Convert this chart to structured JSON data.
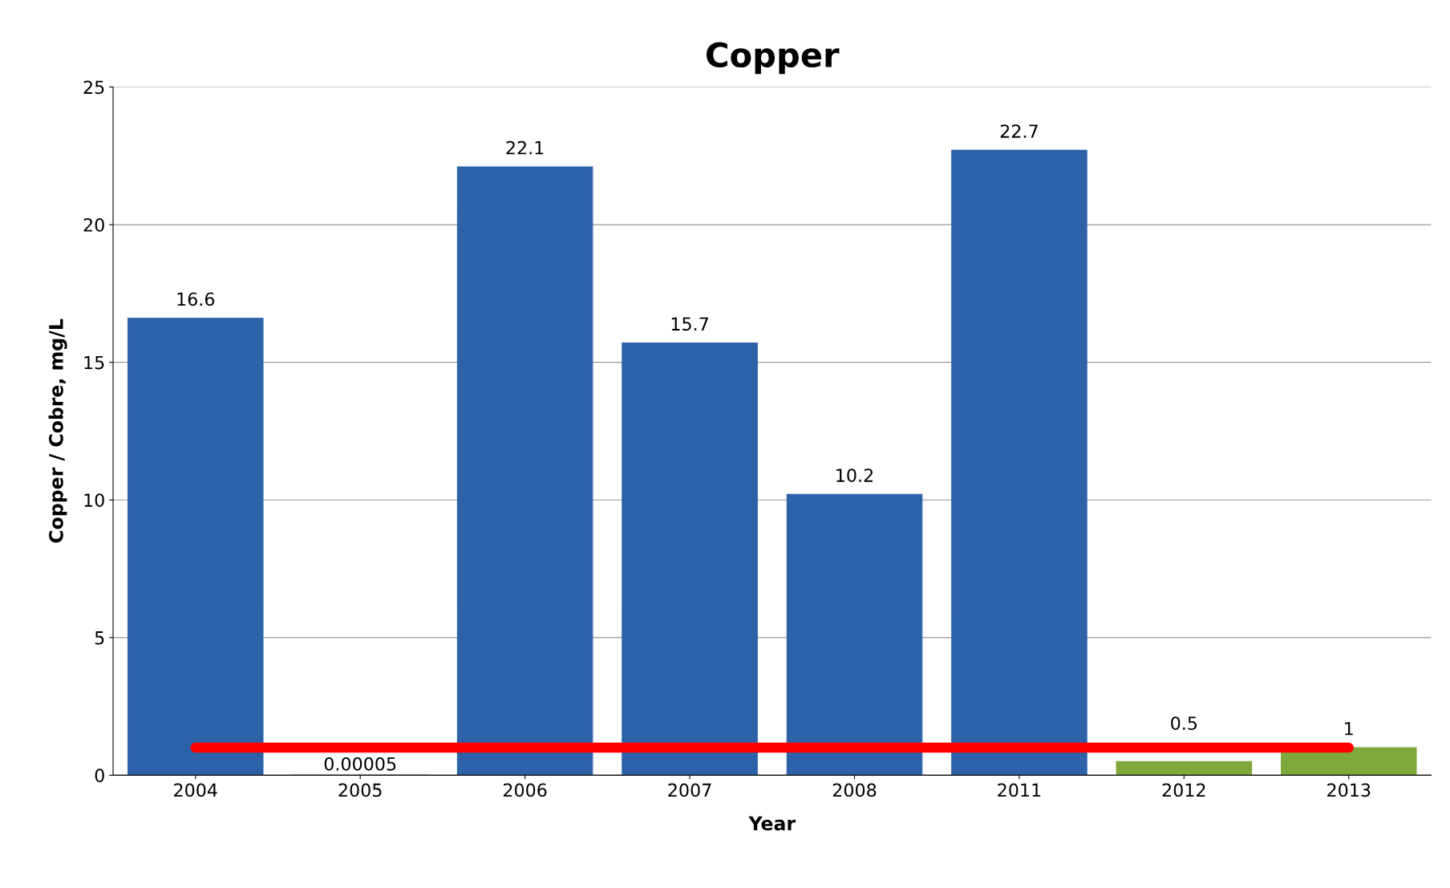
{
  "chart_data": {
    "type": "bar",
    "title": "Copper",
    "xlabel": "Year",
    "ylabel": "Copper / Cobre, mg/L",
    "categories": [
      "2004",
      "2005",
      "2006",
      "2007",
      "2008",
      "2011",
      "2012",
      "2013"
    ],
    "series": [
      {
        "colors": [
          "#2e62a8",
          "#2e62a8",
          "#2e62a8",
          "#2e62a8",
          "#2e62a8",
          "#2e62a8",
          "#7fa83a",
          "#7fa83a"
        ],
        "values": [
          16.6,
          5e-05,
          22.1,
          15.7,
          10.2,
          22.7,
          0.5,
          1
        ],
        "value_labels": [
          "16.6",
          "0.00005",
          "22.1",
          "15.7",
          "10.2",
          "22.7",
          "0.5",
          "1"
        ]
      },
      {
        "type": "line",
        "color": "#ff0000",
        "values": [
          1,
          1,
          1,
          1,
          1,
          1,
          1,
          1
        ]
      }
    ],
    "ylim": [
      0,
      25
    ],
    "yticks": [
      0,
      5,
      10,
      15,
      20,
      25
    ],
    "grid": "y",
    "legend": false
  }
}
